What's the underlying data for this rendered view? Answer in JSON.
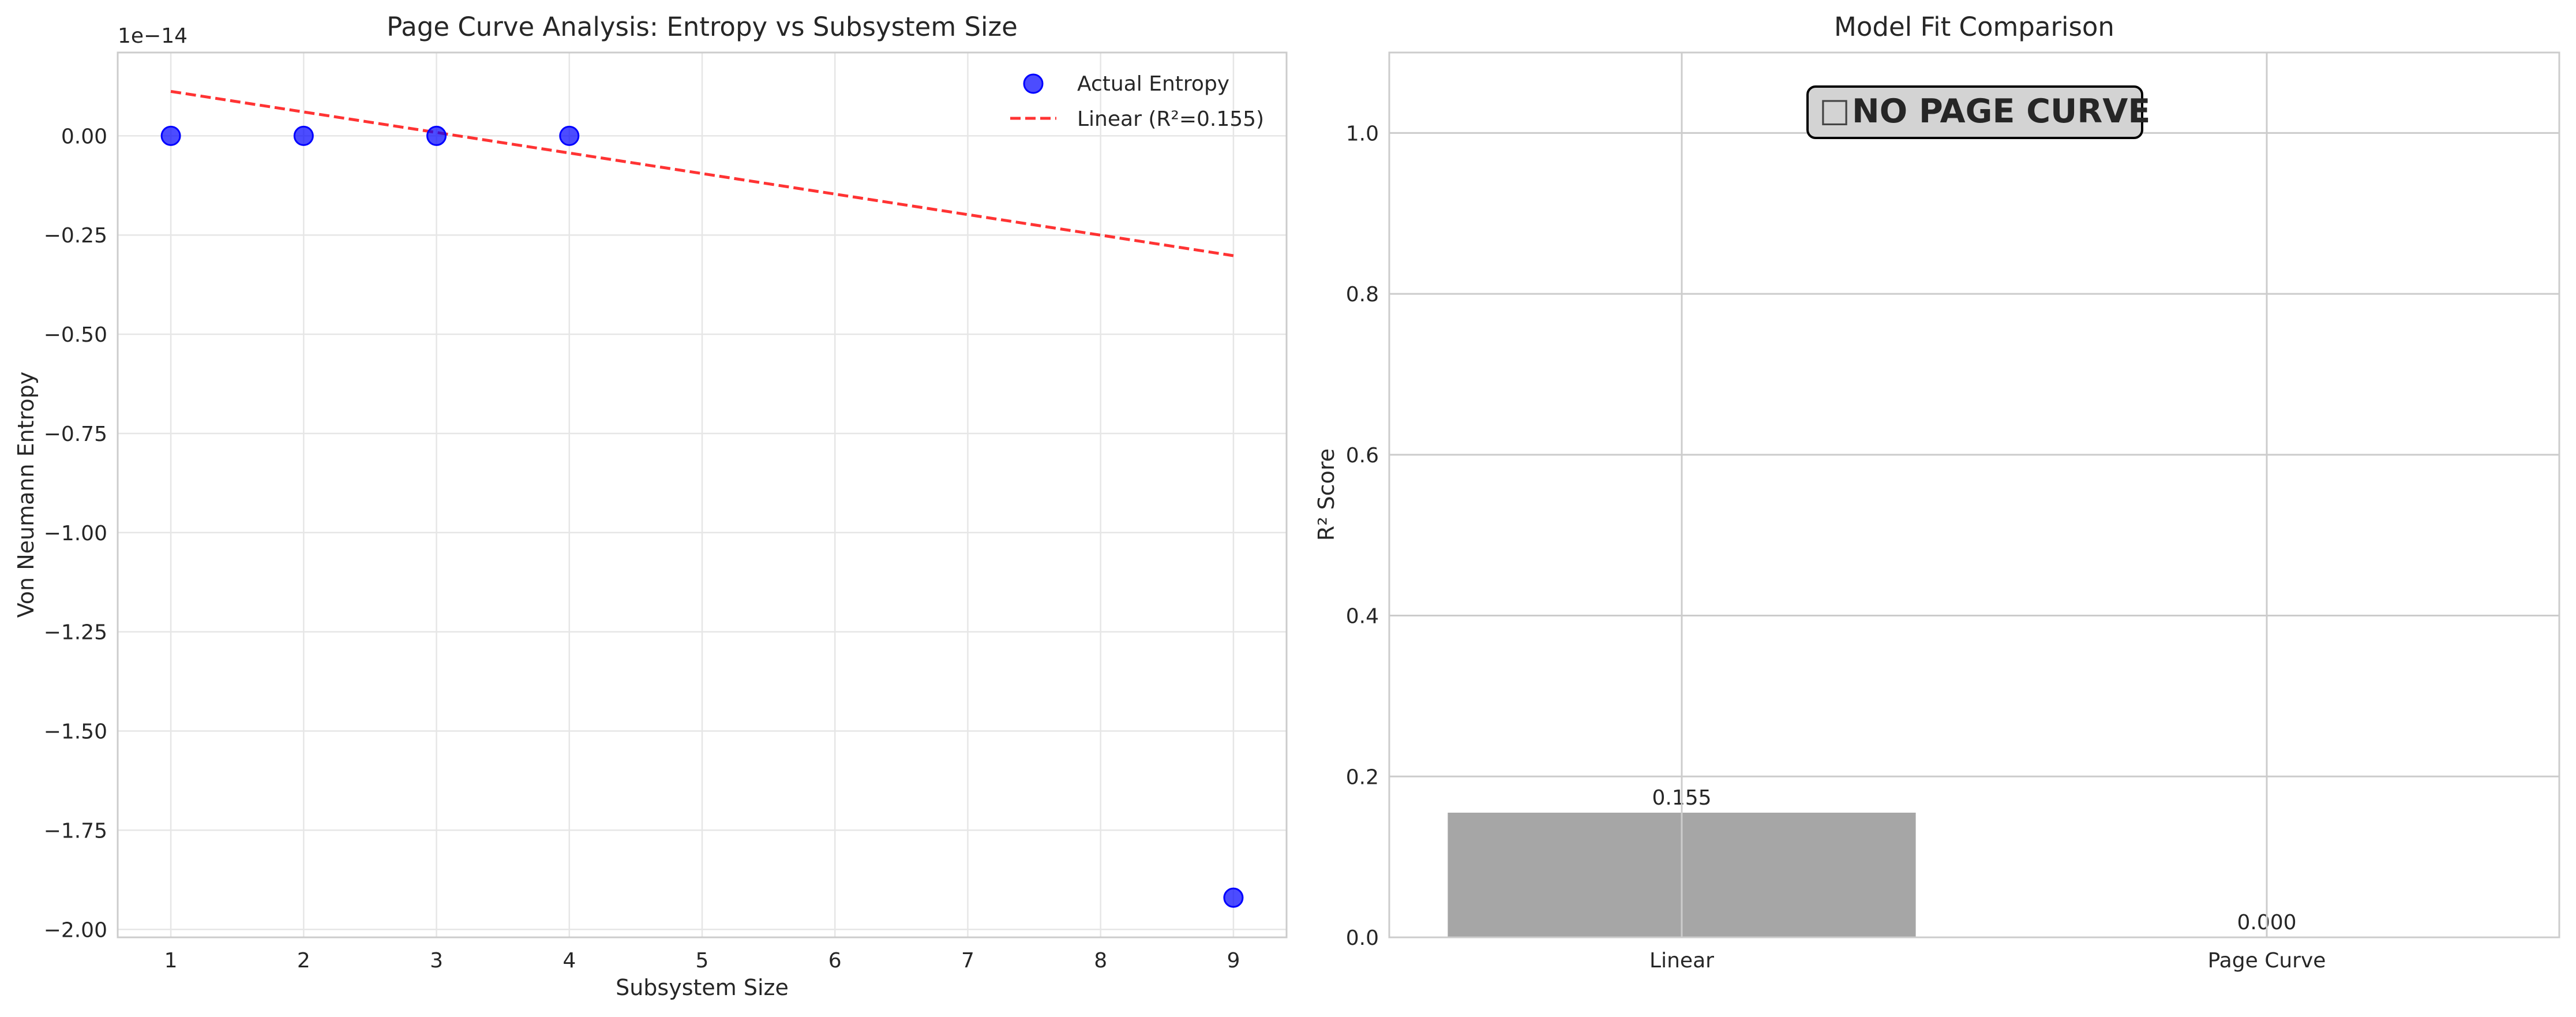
{
  "chart_data": [
    {
      "type": "scatter",
      "title": "Page Curve Analysis: Entropy vs Subsystem Size",
      "xlabel": "Subsystem Size",
      "ylabel": "Von Neumann Entropy",
      "y_offset_label": "1e−14",
      "xlim": [
        0.6,
        9.4
      ],
      "ylim": [
        -2.02,
        0.21
      ],
      "x_ticks": [
        1,
        2,
        3,
        4,
        5,
        6,
        7,
        8,
        9
      ],
      "y_ticks": [
        0.0,
        -0.25,
        -0.5,
        -0.75,
        -1.0,
        -1.25,
        -1.5,
        -1.75,
        -2.0
      ],
      "y_tick_labels": [
        "0.00",
        "−0.25",
        "−0.50",
        "−0.75",
        "−1.00",
        "−1.25",
        "−1.50",
        "−1.75",
        "−2.00"
      ],
      "grid": true,
      "legend_position": "upper right",
      "series": [
        {
          "name": "Actual Entropy",
          "kind": "scatter",
          "color": "#0000ff",
          "x": [
            1,
            2,
            3,
            4,
            9
          ],
          "y": [
            0.0,
            0.0,
            0.0,
            0.0,
            -1.92
          ]
        },
        {
          "name": "Linear (R²=0.155)",
          "kind": "line",
          "style": "dashed",
          "color": "#ff0000",
          "x": [
            1,
            9
          ],
          "y": [
            0.112,
            -0.302
          ]
        }
      ]
    },
    {
      "type": "bar",
      "title": "Model Fit Comparison",
      "xlabel": "",
      "ylabel": "R² Score",
      "categories": [
        "Linear",
        "Page Curve"
      ],
      "values": [
        0.155,
        0.0
      ],
      "value_labels": [
        "0.155",
        "0.000"
      ],
      "bar_color": "#808080",
      "ylim": [
        0.0,
        1.1
      ],
      "y_ticks": [
        0.0,
        0.2,
        0.4,
        0.6,
        0.8,
        1.0
      ],
      "y_tick_labels": [
        "0.0",
        "0.2",
        "0.4",
        "0.6",
        "0.8",
        "1.0"
      ],
      "grid": true,
      "annotation": {
        "icon": "□",
        "text": "NO PAGE CURVE",
        "background": "#d3d3d3"
      }
    }
  ]
}
